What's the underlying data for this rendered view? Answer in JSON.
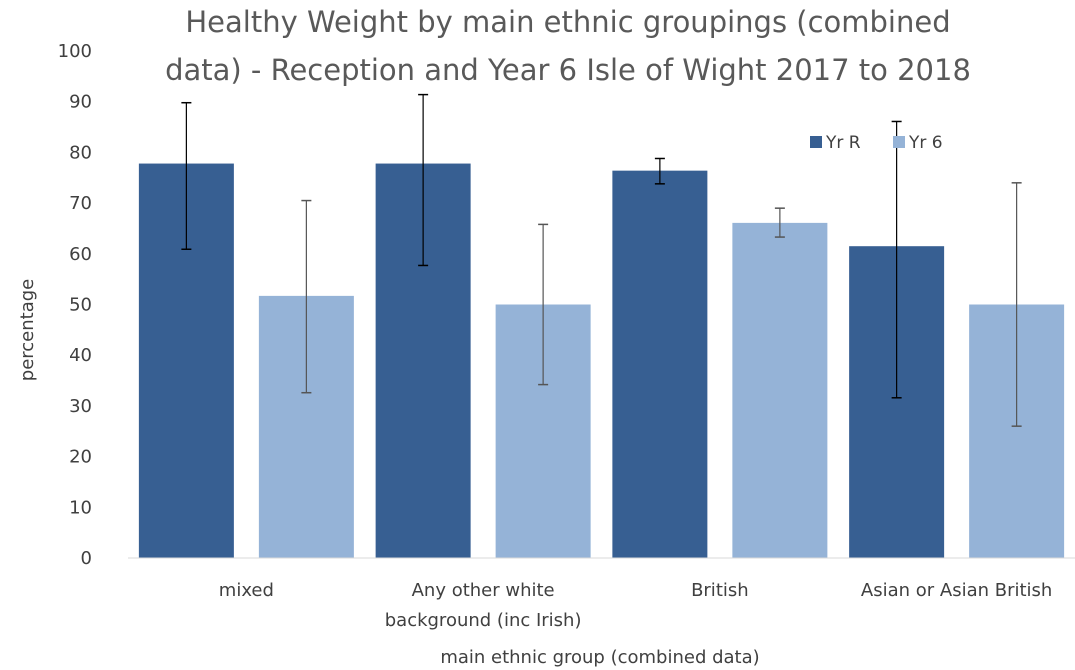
{
  "chart_data": {
    "type": "bar",
    "title_lines": [
      "Healthy Weight by main ethnic groupings (combined",
      "data) - Reception and Year 6 Isle of Wight 2017 to 2018"
    ],
    "xlabel": "main ethnic group (combined data)",
    "ylabel": "percentage",
    "ylim": [
      0,
      100
    ],
    "yticks": [
      0,
      10,
      20,
      30,
      40,
      50,
      60,
      70,
      80,
      90,
      100
    ],
    "categories": [
      [
        "mixed"
      ],
      [
        "Any other white",
        "background (inc Irish)"
      ],
      [
        "British"
      ],
      [
        "Asian or Asian British"
      ]
    ],
    "series": [
      {
        "name": "Yr R",
        "color": "#375f92",
        "values": [
          77.8,
          77.8,
          76.4,
          61.5
        ],
        "err_low": [
          60.9,
          57.7,
          73.8,
          31.6
        ],
        "err_high": [
          89.8,
          91.4,
          78.8,
          86.1
        ]
      },
      {
        "name": "Yr 6",
        "color": "#95b3d7",
        "values": [
          51.7,
          50.0,
          66.1,
          50.0
        ],
        "err_low": [
          32.6,
          34.2,
          63.3,
          26.0
        ],
        "err_high": [
          70.5,
          65.8,
          69.0,
          74.0
        ]
      }
    ],
    "legend": "top-right",
    "grid": false
  }
}
